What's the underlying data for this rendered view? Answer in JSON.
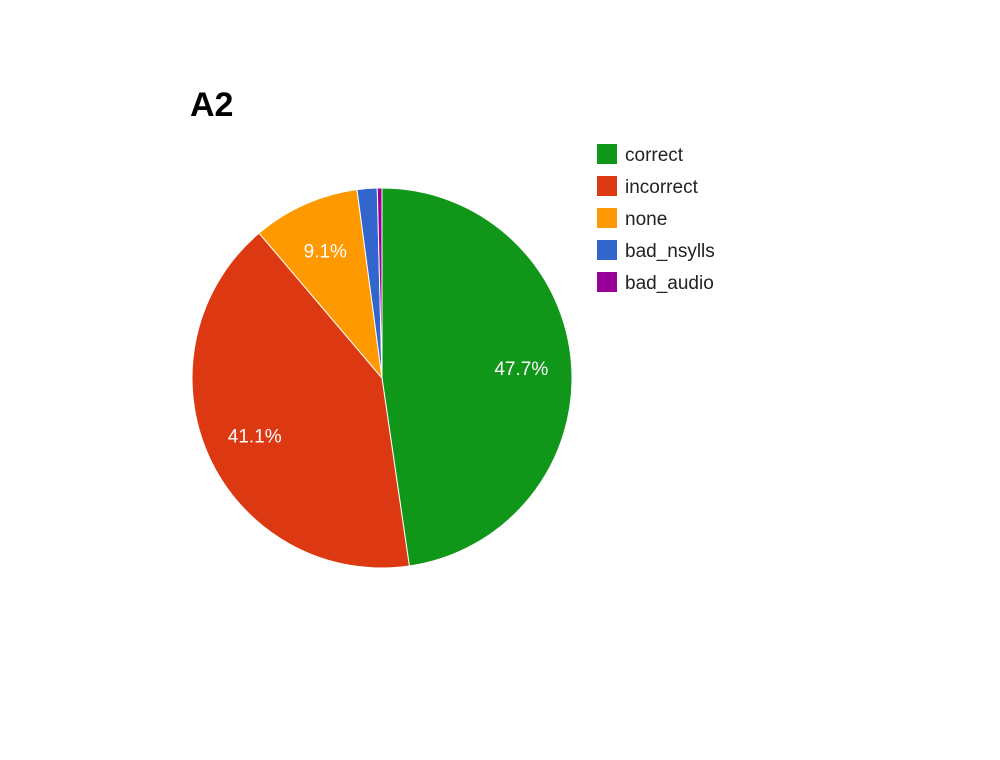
{
  "chart_data": {
    "type": "pie",
    "title": "A2",
    "legend_position": "right",
    "slices": [
      {
        "name": "correct",
        "value": 47.7,
        "label": "47.7%",
        "color": "#109618"
      },
      {
        "name": "incorrect",
        "value": 41.1,
        "label": "41.1%",
        "color": "#dc3912"
      },
      {
        "name": "none",
        "value": 9.1,
        "label": "9.1%",
        "color": "#ff9900"
      },
      {
        "name": "bad_nsylls",
        "value": 1.7,
        "label": "",
        "color": "#3366cc"
      },
      {
        "name": "bad_audio",
        "value": 0.4,
        "label": "",
        "color": "#990099"
      }
    ]
  }
}
